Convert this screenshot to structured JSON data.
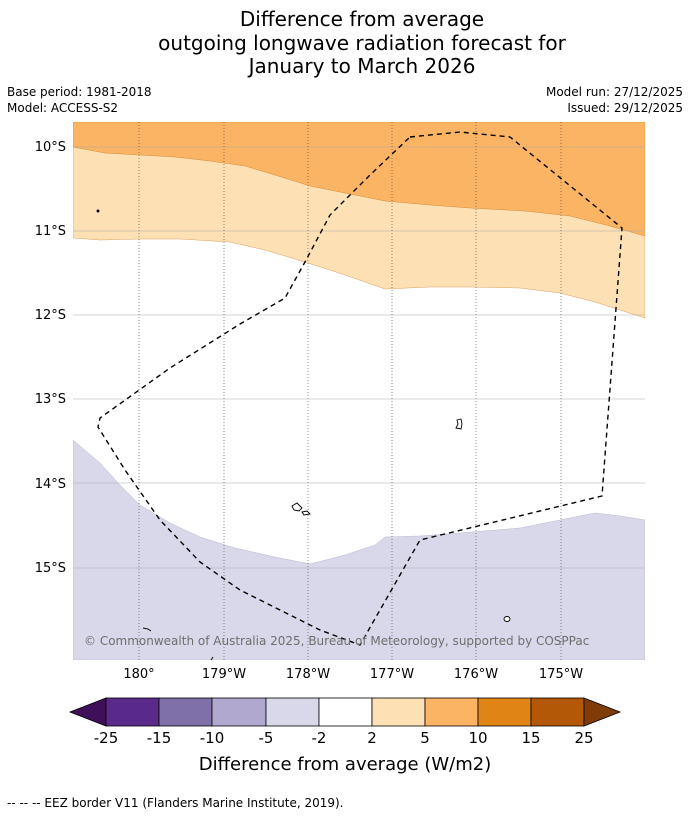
{
  "title": {
    "line1": "Difference from average",
    "line2": "outgoing longwave radiation forecast for",
    "line3": "January to March 2026"
  },
  "meta": {
    "base_period": "Base period: 1981-2018",
    "model": "Model: ACCESS-S2",
    "model_run": "Model run: 27/12/2025",
    "issued": "Issued: 29/12/2025"
  },
  "map": {
    "lat_labels": [
      "10°S",
      "11°S",
      "12°S",
      "13°S",
      "14°S",
      "15°S"
    ],
    "lon_labels": [
      "180°",
      "179°W",
      "178°W",
      "177°W",
      "176°W",
      "175°W"
    ],
    "copyright": "© Commonwealth of Australia 2025, Bureau of Meteorology, supported by COSPPac"
  },
  "colorbar": {
    "ticks": [
      "-25",
      "-15",
      "-10",
      "-5",
      "-2",
      "2",
      "5",
      "10",
      "15",
      "25"
    ],
    "colors": [
      "#3f0f5a",
      "#5a2a8a",
      "#8070aa",
      "#b1a8d0",
      "#d8d8ea",
      "#ffffff",
      "#fde0b4",
      "#fbb463",
      "#e08416",
      "#b35806",
      "#7f3b08"
    ],
    "label": "Difference from average (W/m2)"
  },
  "footnote": "--  --  -- EEZ border V11 (Flanders Marine Institute, 2019)."
}
